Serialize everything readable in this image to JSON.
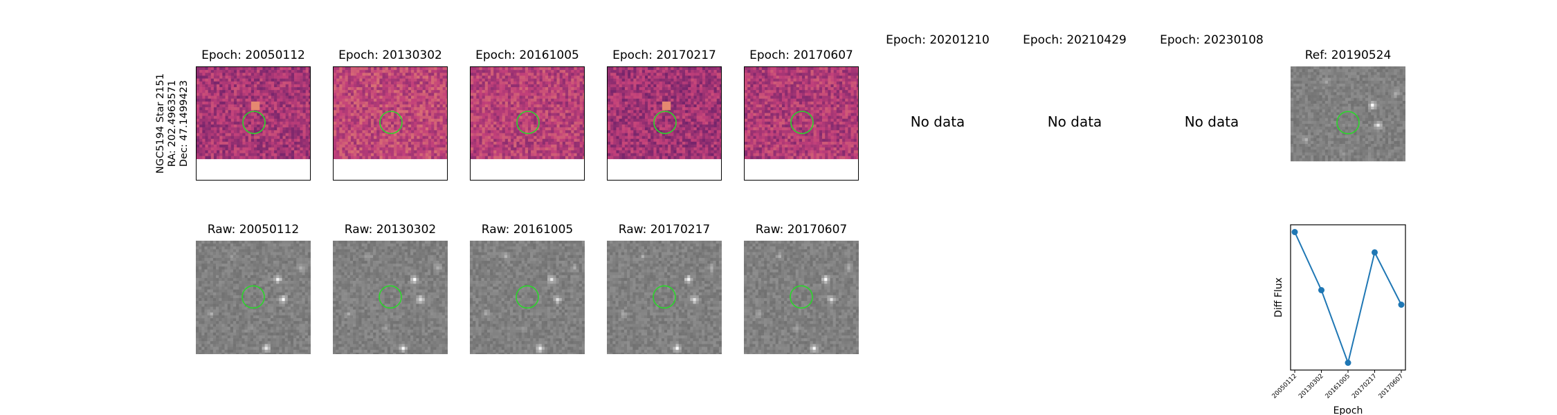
{
  "star_label": [
    "NGC5194 Star 2151",
    "RA: 202.4963571",
    "Dec: 47.1499423"
  ],
  "diff_panels": [
    {
      "title": "Epoch: 20050112",
      "has_data": true
    },
    {
      "title": "Epoch: 20130302",
      "has_data": true
    },
    {
      "title": "Epoch: 20161005",
      "has_data": true
    },
    {
      "title": "Epoch: 20170217",
      "has_data": true
    },
    {
      "title": "Epoch: 20170607",
      "has_data": true
    },
    {
      "title": "Epoch: 20201210",
      "has_data": false,
      "message": "No data"
    },
    {
      "title": "Epoch: 20210429",
      "has_data": false,
      "message": "No data"
    },
    {
      "title": "Epoch: 20230108",
      "has_data": false,
      "message": "No data"
    }
  ],
  "ref_panel": {
    "title": "Ref: 20190524"
  },
  "raw_panels": [
    {
      "title": "Raw: 20050112"
    },
    {
      "title": "Raw: 20130302"
    },
    {
      "title": "Raw: 20161005"
    },
    {
      "title": "Raw: 20170217"
    },
    {
      "title": "Raw: 20170607"
    }
  ],
  "colors": {
    "aperture": "#2bd62b",
    "line": "#1f77b4",
    "diff_low": "#3b1060",
    "diff_mid": "#c2407a",
    "diff_high": "#fcb86a",
    "raw_gray": "#8a8a8a"
  },
  "chart_data": {
    "type": "line",
    "x": [
      "20050112",
      "20130302",
      "20161005",
      "20170217",
      "20170607"
    ],
    "values": [
      0.95,
      0.55,
      0.05,
      0.81,
      0.45
    ],
    "xlabel": "Epoch",
    "ylabel": "Diff Flux",
    "ylim": [
      0,
      1
    ],
    "yticks_shown": false,
    "grid": false
  }
}
